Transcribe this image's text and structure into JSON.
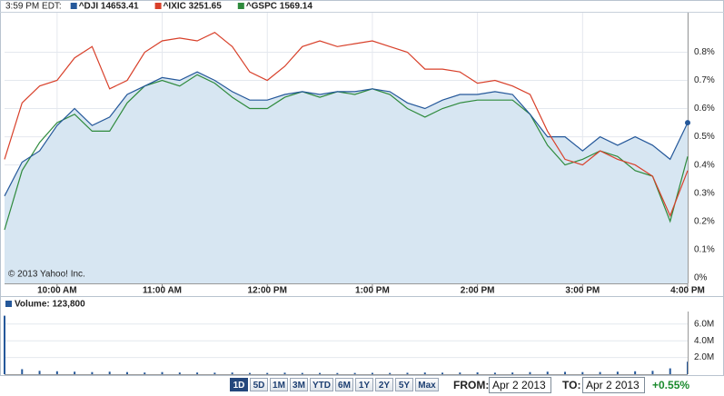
{
  "header": {
    "time": "3:59 PM EDT:"
  },
  "chart_data": [
    {
      "type": "line",
      "annotation": "© 2013 Yahoo! Inc.",
      "x": [
        570,
        580,
        590,
        600,
        610,
        620,
        630,
        640,
        650,
        660,
        670,
        680,
        690,
        700,
        710,
        720,
        730,
        740,
        750,
        760,
        770,
        780,
        790,
        800,
        810,
        820,
        830,
        840,
        850,
        860,
        870,
        880,
        890,
        900,
        910,
        920,
        930,
        940,
        950,
        960
      ],
      "xlim": [
        570,
        960
      ],
      "xticks": [
        {
          "value": 600,
          "label": "10:00 AM"
        },
        {
          "value": 660,
          "label": "11:00 AM"
        },
        {
          "value": 720,
          "label": "12:00 PM"
        },
        {
          "value": 780,
          "label": "1:00 PM"
        },
        {
          "value": 840,
          "label": "2:00 PM"
        },
        {
          "value": 900,
          "label": "3:00 PM"
        },
        {
          "value": 960,
          "label": "4:00 PM"
        }
      ],
      "ylim": [
        -0.02,
        0.94
      ],
      "yticks": [
        {
          "value": 0,
          "label": "0%"
        },
        {
          "value": 0.1,
          "label": "0.1%"
        },
        {
          "value": 0.2,
          "label": "0.2%"
        },
        {
          "value": 0.3,
          "label": "0.3%"
        },
        {
          "value": 0.4,
          "label": "0.4%"
        },
        {
          "value": 0.5,
          "label": "0.5%"
        },
        {
          "value": 0.6,
          "label": "0.6%"
        },
        {
          "value": 0.7,
          "label": "0.7%"
        },
        {
          "value": 0.8,
          "label": "0.8%"
        }
      ],
      "grid": true,
      "fill": "#d7e6f2",
      "series": [
        {
          "name": "^DJI 14653.41",
          "color": "#25589a",
          "values": [
            0.29,
            0.41,
            0.45,
            0.54,
            0.6,
            0.54,
            0.57,
            0.65,
            0.68,
            0.71,
            0.7,
            0.73,
            0.7,
            0.66,
            0.63,
            0.63,
            0.65,
            0.66,
            0.65,
            0.66,
            0.66,
            0.67,
            0.66,
            0.62,
            0.6,
            0.63,
            0.65,
            0.65,
            0.66,
            0.65,
            0.58,
            0.5,
            0.5,
            0.45,
            0.5,
            0.47,
            0.5,
            0.47,
            0.42,
            0.55
          ]
        },
        {
          "name": "^IXIC 3251.65",
          "color": "#d8402a",
          "values": [
            0.42,
            0.62,
            0.68,
            0.7,
            0.78,
            0.82,
            0.67,
            0.7,
            0.8,
            0.84,
            0.85,
            0.84,
            0.87,
            0.82,
            0.73,
            0.7,
            0.75,
            0.82,
            0.84,
            0.82,
            0.83,
            0.84,
            0.82,
            0.8,
            0.74,
            0.74,
            0.73,
            0.69,
            0.7,
            0.68,
            0.65,
            0.52,
            0.42,
            0.4,
            0.45,
            0.42,
            0.4,
            0.36,
            0.22,
            0.38
          ]
        },
        {
          "name": "^GSPC 1569.14",
          "color": "#2e8a3c",
          "values": [
            0.17,
            0.38,
            0.48,
            0.55,
            0.58,
            0.52,
            0.52,
            0.62,
            0.68,
            0.7,
            0.68,
            0.72,
            0.69,
            0.64,
            0.6,
            0.6,
            0.64,
            0.66,
            0.64,
            0.66,
            0.65,
            0.67,
            0.65,
            0.6,
            0.57,
            0.6,
            0.62,
            0.63,
            0.63,
            0.63,
            0.58,
            0.47,
            0.4,
            0.42,
            0.45,
            0.43,
            0.38,
            0.36,
            0.2,
            0.43
          ]
        }
      ]
    },
    {
      "type": "bar",
      "title": "Volume: 123,800",
      "color": "#25589a",
      "x": [
        570,
        580,
        590,
        600,
        610,
        620,
        630,
        640,
        650,
        660,
        670,
        680,
        690,
        700,
        710,
        720,
        730,
        740,
        750,
        760,
        770,
        780,
        790,
        800,
        810,
        820,
        830,
        840,
        850,
        860,
        870,
        880,
        890,
        900,
        910,
        920,
        930,
        940,
        950,
        960
      ],
      "values": [
        7000000,
        600000,
        400000,
        350000,
        300000,
        250000,
        300000,
        250000,
        200000,
        250000,
        200000,
        200000,
        180000,
        200000,
        150000,
        150000,
        180000,
        150000,
        150000,
        140000,
        150000,
        160000,
        150000,
        170000,
        200000,
        180000,
        200000,
        220000,
        180000,
        200000,
        250000,
        300000,
        280000,
        250000,
        260000,
        300000,
        350000,
        400000,
        700000,
        1500000
      ],
      "ylim": [
        0,
        7500000
      ],
      "yticks": [
        {
          "value": 2000000,
          "label": "2.0M"
        },
        {
          "value": 4000000,
          "label": "4.0M"
        },
        {
          "value": 6000000,
          "label": "6.0M"
        }
      ]
    }
  ],
  "controls": {
    "ranges": [
      "1D",
      "5D",
      "1M",
      "3M",
      "YTD",
      "6M",
      "1Y",
      "2Y",
      "5Y",
      "Max"
    ],
    "active": 0,
    "from_label": "FROM:",
    "from": "Apr 2 2013",
    "to_label": "TO:",
    "to": "Apr 2 2013",
    "change": "+0.55%"
  }
}
